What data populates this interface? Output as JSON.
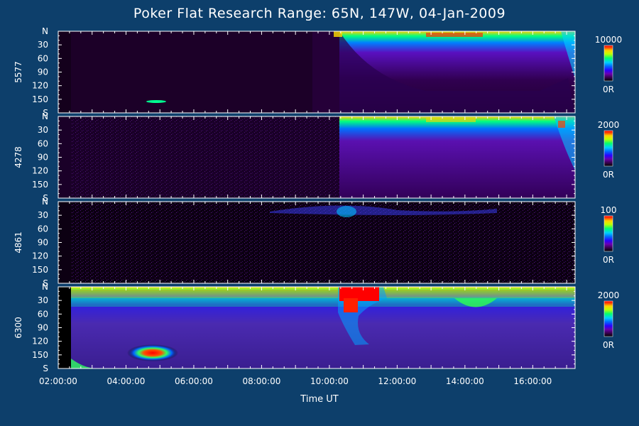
{
  "chart_data": {
    "type": "heatmap",
    "title": "Poker Flat Research Range: 65N, 147W, 04-Jan-2009",
    "xlabel": "Time UT",
    "xlim": [
      "02:00:00",
      "17:15:00"
    ],
    "x_ticks": [
      "02:00:00",
      "04:00:00",
      "06:00:00",
      "08:00:00",
      "10:00:00",
      "12:00:00",
      "14:00:00",
      "16:00:00"
    ],
    "y_ticks": [
      "N",
      "30",
      "60",
      "90",
      "120",
      "150",
      "S"
    ],
    "ylim": [
      0,
      180
    ],
    "panels": [
      {
        "name": "5577",
        "scale_max": "10000",
        "scale_min": "0R"
      },
      {
        "name": "4278",
        "scale_max": "2000",
        "scale_min": "0R"
      },
      {
        "name": "4861",
        "scale_max": "100",
        "scale_min": "0R"
      },
      {
        "name": "6300",
        "scale_max": "2000",
        "scale_min": "0R"
      }
    ],
    "colormap": [
      "#000000",
      "#3a0050",
      "#6a00b0",
      "#2a00ff",
      "#0070ff",
      "#00d0ff",
      "#00ff70",
      "#c0ff00",
      "#ffd000",
      "#ff4000",
      "#ff0000"
    ]
  }
}
